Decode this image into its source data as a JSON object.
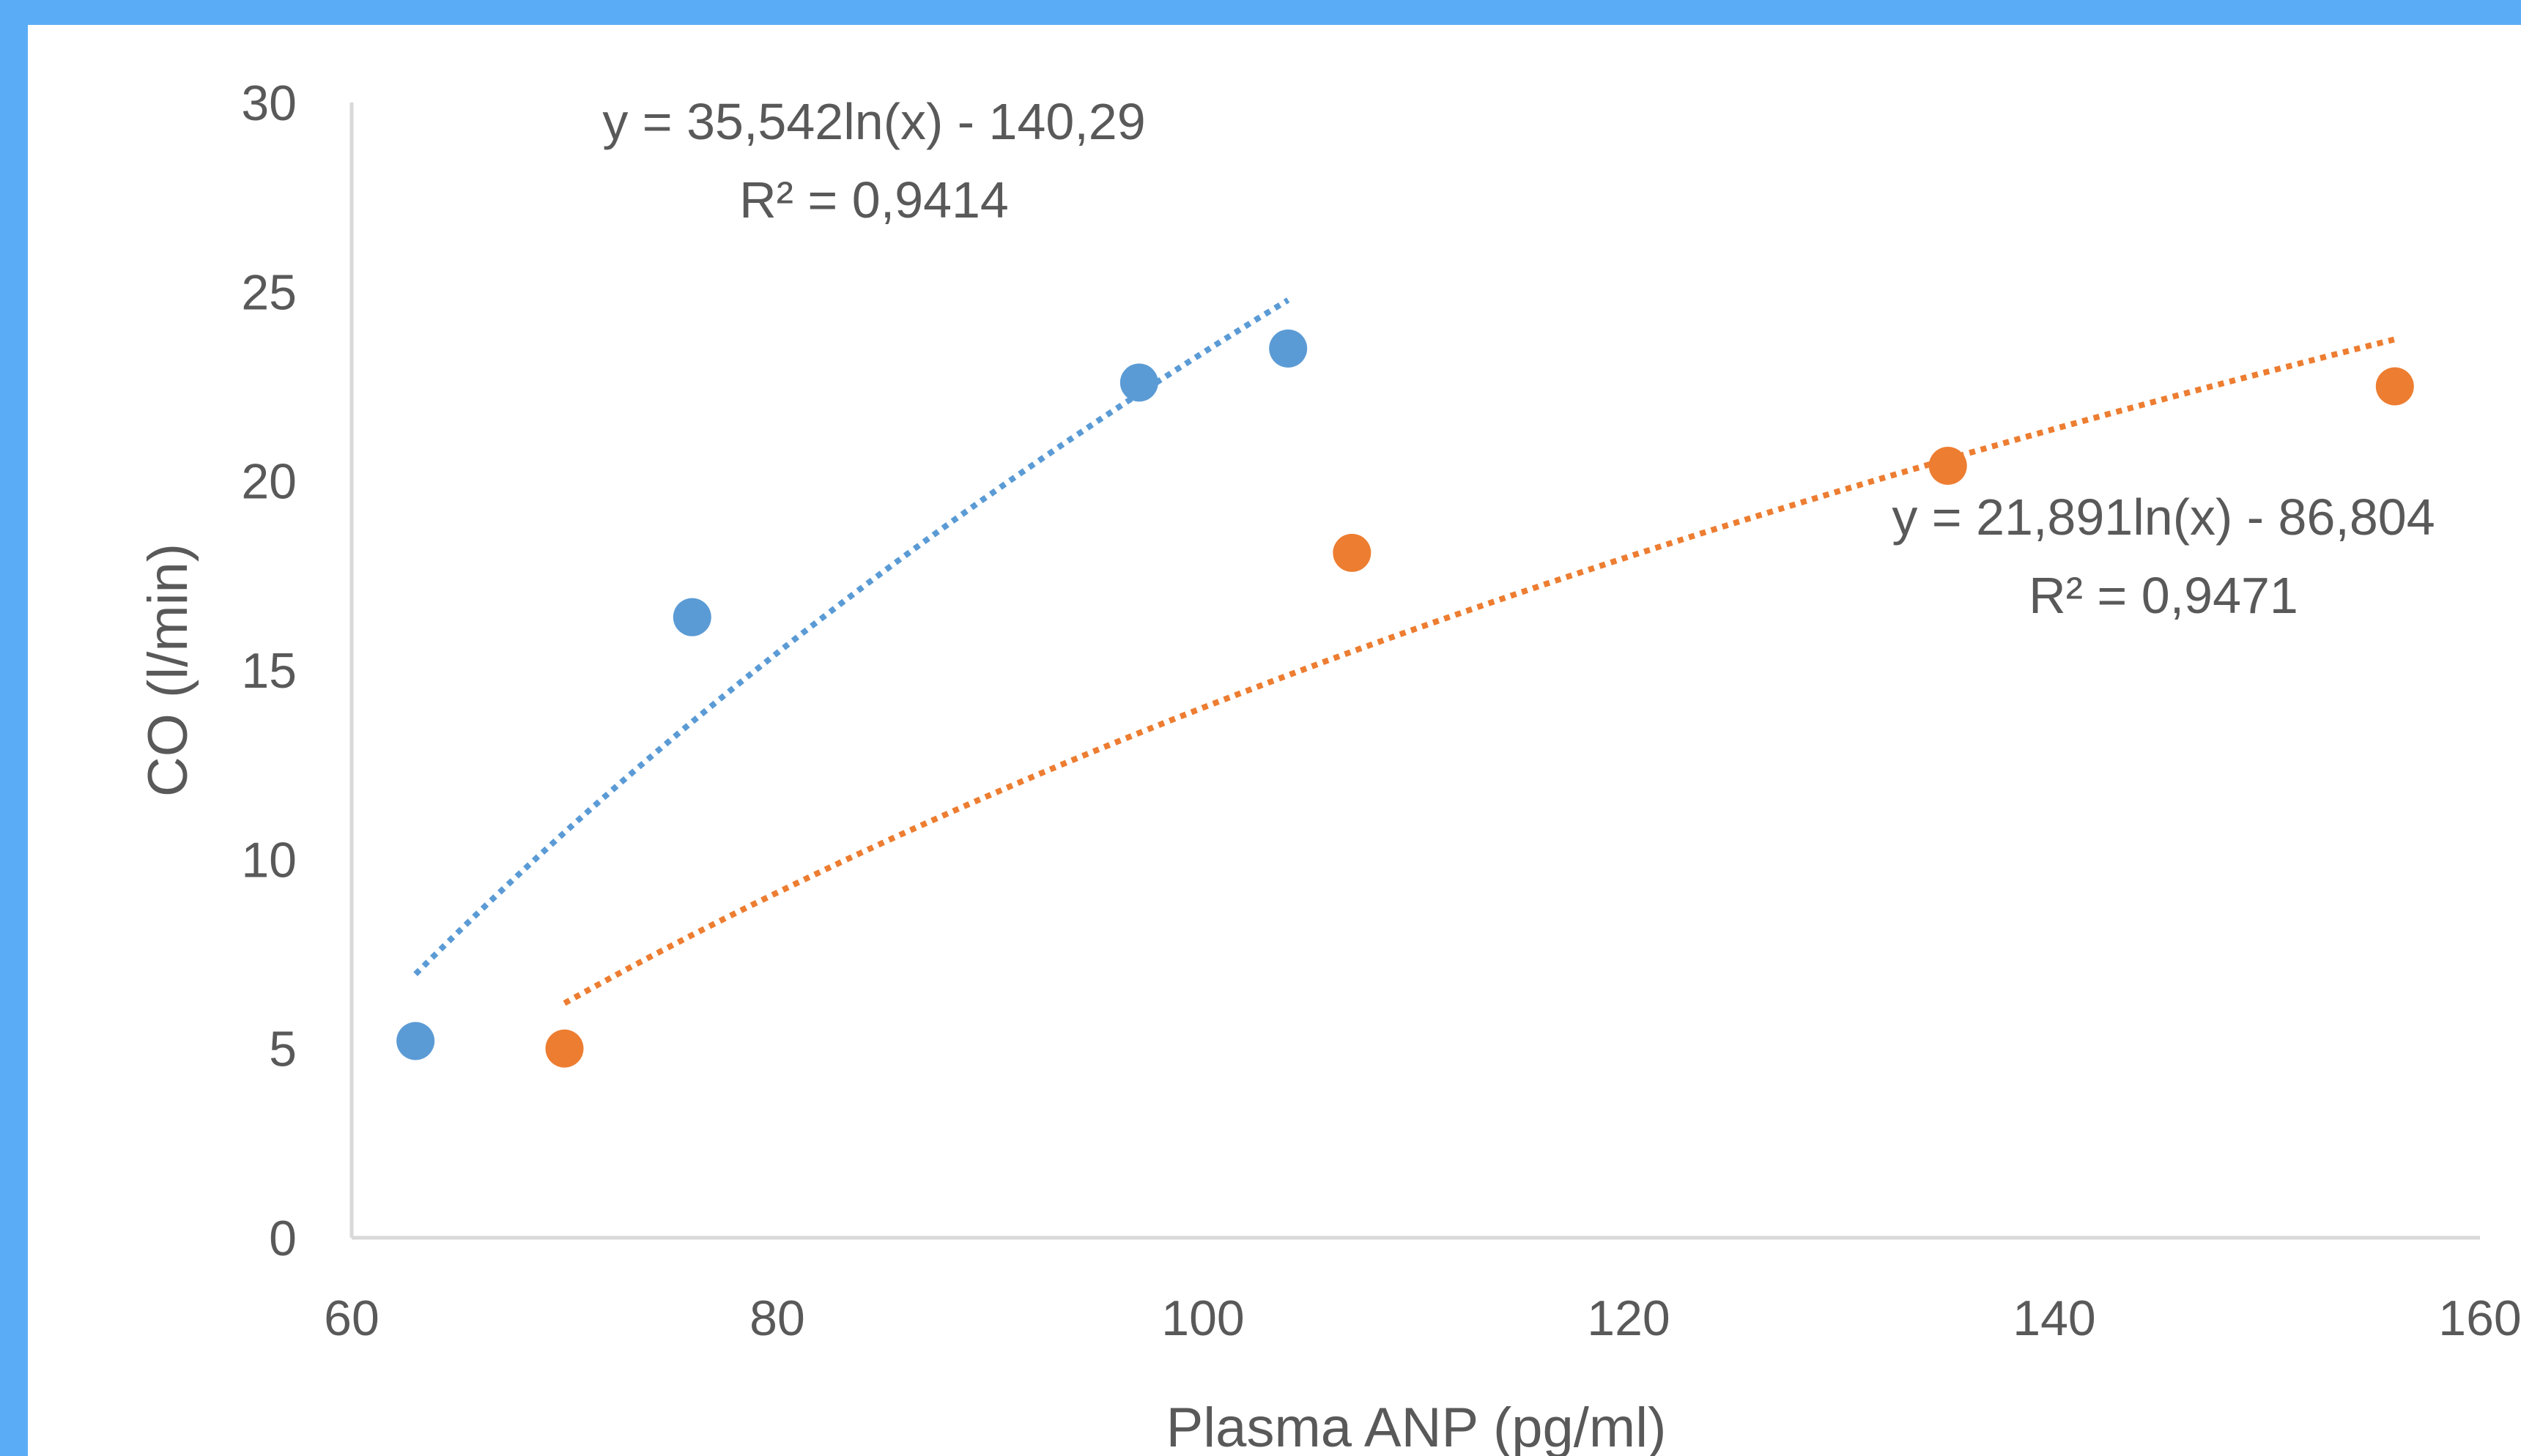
{
  "chart_data": {
    "type": "scatter",
    "title": "",
    "xlabel": "Plasma ANP (pg/ml)",
    "ylabel": "CO (l/min)",
    "xlim": [
      60,
      160
    ],
    "ylim": [
      0,
      30
    ],
    "x_ticks": [
      "60",
      "80",
      "100",
      "120",
      "140",
      "160"
    ],
    "y_ticks": [
      "0",
      "5",
      "10",
      "15",
      "20",
      "25",
      "30"
    ],
    "grid": false,
    "legend": "none",
    "series": [
      {
        "color": "#5b9bd5",
        "points": [
          {
            "x": 63,
            "y": 5.2
          },
          {
            "x": 76,
            "y": 16.4
          },
          {
            "x": 97,
            "y": 22.6
          },
          {
            "x": 104,
            "y": 23.5
          }
        ],
        "trendline": {
          "type": "logarithmic",
          "a": 35.542,
          "b": -140.29,
          "x_range": [
            63,
            104
          ],
          "equation": "y = 35,542ln(x) - 140,29",
          "r2": "R² = 0,9414"
        }
      },
      {
        "color": "#ed7d31",
        "points": [
          {
            "x": 70,
            "y": 5.0
          },
          {
            "x": 107,
            "y": 18.1
          },
          {
            "x": 135,
            "y": 20.4
          },
          {
            "x": 156,
            "y": 22.5
          }
        ],
        "trendline": {
          "type": "logarithmic",
          "a": 21.891,
          "b": -86.804,
          "x_range": [
            70,
            156
          ],
          "equation": "y = 21,891ln(x) - 86,804",
          "r2": "R² = 0,9471"
        }
      }
    ]
  }
}
